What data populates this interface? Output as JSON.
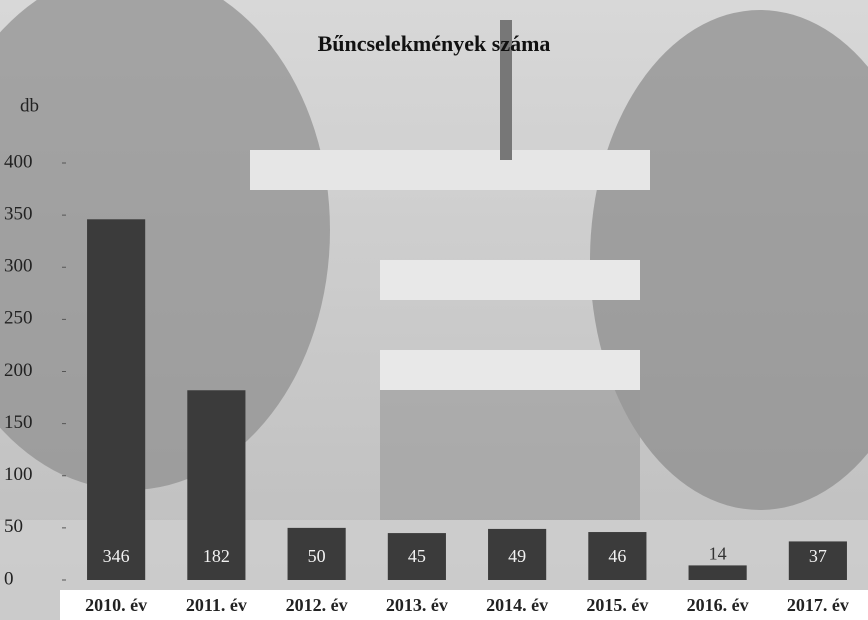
{
  "chart_data": {
    "type": "bar",
    "title": "Bűncselekmények száma",
    "y_label": "db",
    "categories": [
      "2010. év",
      "2011. év",
      "2012. év",
      "2013. év",
      "2014. év",
      "2015. év",
      "2016. év",
      "2017. év"
    ],
    "values": [
      346,
      182,
      50,
      45,
      49,
      46,
      14,
      37
    ],
    "color": "#3b3b3b",
    "ylim": [
      0,
      400
    ],
    "yticks": [
      0,
      50,
      100,
      150,
      200,
      250,
      300,
      350,
      400
    ],
    "grid": false
  }
}
